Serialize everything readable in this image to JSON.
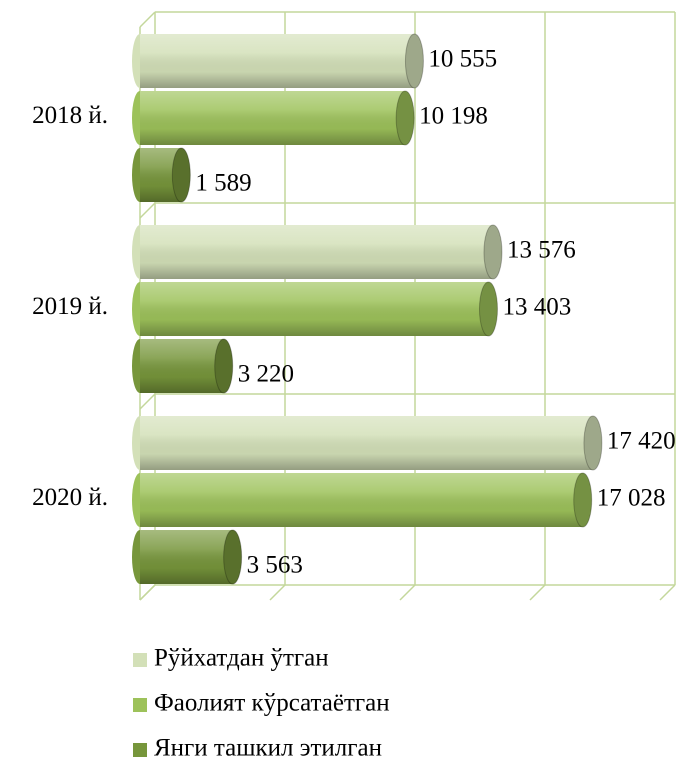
{
  "chart_data": {
    "type": "bar",
    "orientation": "horizontal",
    "categories": [
      "2018 й.",
      "2019 й.",
      "2020 й."
    ],
    "series": [
      {
        "name": "Рўйхатдан ўтган",
        "color": "#d3e0b8",
        "values": [
          10555,
          13576,
          17420
        ],
        "value_labels": [
          "10 555",
          "13 576",
          "17 420"
        ]
      },
      {
        "name": "Фаолият кўрсатаётган",
        "color": "#9dc25a",
        "values": [
          10198,
          13403,
          17028
        ],
        "value_labels": [
          "10 198",
          "13 403",
          "17 028"
        ]
      },
      {
        "name": "Янги ташкил этилган",
        "color": "#77963b",
        "values": [
          1589,
          3220,
          3563
        ],
        "value_labels": [
          "1 589",
          "3 220",
          "3 563"
        ]
      }
    ],
    "xlim": [
      0,
      20000
    ],
    "xticks": [
      0,
      5000,
      10000,
      15000,
      20000
    ],
    "grid": true,
    "legend": "bottom"
  }
}
